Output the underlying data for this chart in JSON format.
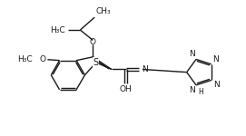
{
  "bg_color": "#ffffff",
  "line_color": "#1a1a1a",
  "line_width": 1.0,
  "font_size": 6.5,
  "fig_width": 2.71,
  "fig_height": 1.5,
  "dpi": 100,
  "xlim": [
    0,
    10.5
  ],
  "ylim": [
    0,
    5.8
  ]
}
